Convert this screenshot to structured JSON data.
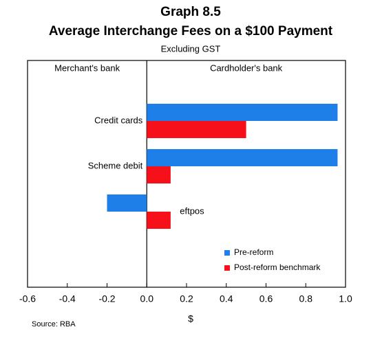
{
  "chart_data": {
    "type": "hbar",
    "title": "Graph 8.5",
    "subtitle": "Average Interchange Fees on a $100 Payment",
    "note": "Excluding GST",
    "panel_labels": [
      "Merchant's bank",
      "Cardholder's bank"
    ],
    "xlabel": "$",
    "source": "Source: RBA",
    "categories": [
      "Credit cards",
      "Scheme debit",
      "eftpos"
    ],
    "series": [
      {
        "name": "Pre-reform",
        "color": "#1f7fe8",
        "values": [
          0.96,
          0.96,
          -0.2
        ]
      },
      {
        "name": "Post-reform benchmark",
        "color": "#f5101a",
        "values": [
          0.5,
          0.12,
          0.12
        ]
      }
    ],
    "xlim": [
      -0.6,
      1.0
    ],
    "xticks": [
      -0.6,
      -0.4,
      -0.2,
      {
        "value": 0,
        "label": "0.0"
      },
      0.2,
      0.4,
      0.6,
      0.8,
      {
        "value": 1,
        "label": "1.0"
      }
    ],
    "legend": "lower-right"
  }
}
